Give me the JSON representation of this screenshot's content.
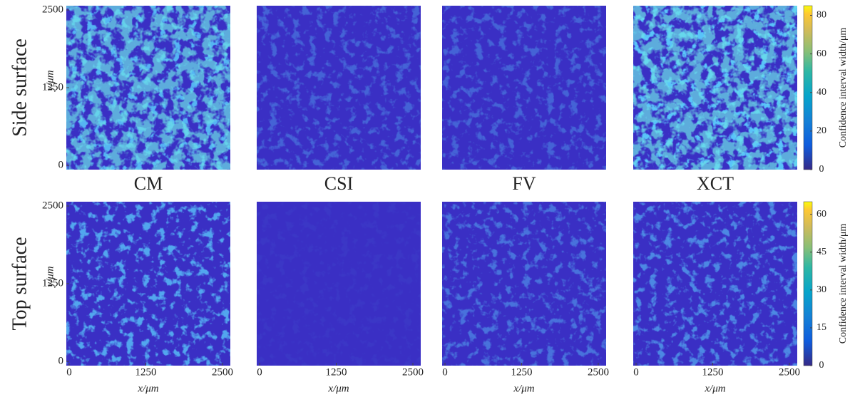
{
  "figure": {
    "row_labels": [
      "Side surface",
      "Top surface"
    ],
    "column_labels": [
      "CM",
      "CSI",
      "FV",
      "XCT"
    ],
    "x_label": "x/μm",
    "y_label": "y/μm",
    "xticks": [
      0,
      1250,
      2500
    ],
    "yticks": [
      0,
      1250,
      2500
    ],
    "colorbars": [
      {
        "label": "Confidence interval width/μm",
        "lim": [
          0,
          85
        ],
        "ticks": [
          0,
          20,
          40,
          60,
          80
        ]
      },
      {
        "label": "Confidence interval width/μm",
        "lim": [
          0,
          65
        ],
        "ticks": [
          0,
          15,
          30,
          45,
          60
        ]
      }
    ]
  }
}
